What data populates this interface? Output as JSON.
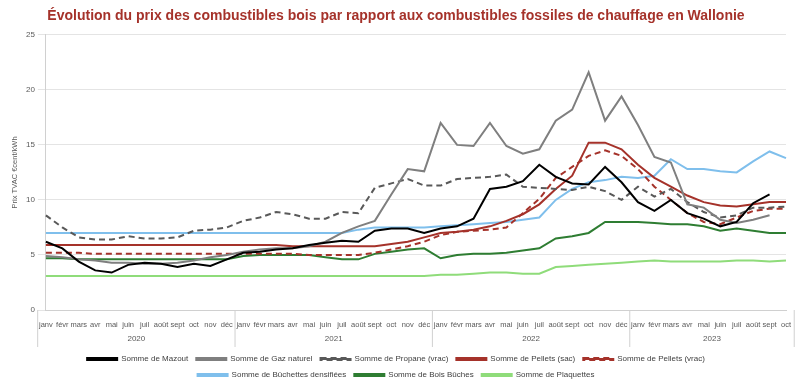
{
  "chart_data": {
    "type": "line",
    "title": "Évolution du prix des combustibles bois par rapport aux combustibles fossiles de chauffage en Wallonie",
    "y_label": "Prix TVAC €cent/kWh",
    "categories": [
      "janv",
      "févr",
      "mars",
      "avr",
      "mai",
      "juin",
      "juil",
      "août",
      "sept",
      "oct",
      "nov",
      "déc",
      "janv",
      "févr",
      "mars",
      "avr",
      "mai",
      "juin",
      "juil",
      "août",
      "sept",
      "oct",
      "nov",
      "déc",
      "janv",
      "févr",
      "mars",
      "avr",
      "mai",
      "juin",
      "juil",
      "août",
      "sept",
      "oct",
      "nov",
      "déc",
      "janv",
      "févr",
      "mars",
      "avr",
      "mai",
      "juin",
      "juil",
      "août",
      "sept",
      "oct"
    ],
    "years": [
      "2020",
      "2020",
      "2020",
      "2020",
      "2020",
      "2020",
      "2020",
      "2020",
      "2020",
      "2020",
      "2020",
      "2020",
      "2021",
      "2021",
      "2021",
      "2021",
      "2021",
      "2021",
      "2021",
      "2021",
      "2021",
      "2021",
      "2021",
      "2021",
      "2022",
      "2022",
      "2022",
      "2022",
      "2022",
      "2022",
      "2022",
      "2022",
      "2022",
      "2022",
      "2022",
      "2022",
      "2023",
      "2023",
      "2023",
      "2023",
      "2023",
      "2023",
      "2023",
      "2023",
      "2023",
      "2023"
    ],
    "series": [
      {
        "name": "Somme de Mazout",
        "color": "#000000",
        "line_style": "solid",
        "values": [
          6.2,
          5.6,
          4.4,
          3.6,
          3.4,
          4.1,
          4.3,
          4.2,
          3.9,
          4.2,
          4.0,
          4.6,
          5.2,
          5.3,
          5.5,
          5.6,
          5.9,
          6.1,
          6.3,
          6.2,
          7.2,
          7.4,
          7.4,
          7.0,
          7.4,
          7.6,
          8.3,
          11.0,
          11.2,
          11.7,
          13.2,
          12.1,
          11.5,
          11.4,
          13.0,
          11.6,
          9.8,
          9.0,
          10.0,
          8.8,
          8.3,
          7.6,
          8.0,
          9.7,
          10.5,
          null
        ]
      },
      {
        "name": "Somme de Gaz naturel",
        "color": "#7f7f7f",
        "line_style": "solid",
        "values": [
          4.9,
          4.8,
          4.6,
          4.5,
          4.3,
          4.3,
          4.2,
          4.2,
          4.3,
          4.5,
          4.8,
          5.0,
          5.3,
          5.5,
          5.6,
          5.6,
          5.8,
          6.2,
          7.0,
          7.6,
          8.1,
          10.5,
          12.8,
          12.6,
          17.0,
          15.0,
          14.9,
          17.0,
          14.9,
          14.2,
          14.6,
          17.2,
          18.2,
          21.6,
          17.2,
          19.4,
          16.8,
          13.9,
          13.4,
          9.6,
          9.3,
          8.2,
          7.9,
          8.2,
          8.6,
          null
        ]
      },
      {
        "name": "Somme de Propane (vrac)",
        "color": "#595959",
        "line_style": "dashed",
        "values": [
          8.6,
          7.5,
          6.6,
          6.4,
          6.4,
          6.7,
          6.5,
          6.5,
          6.6,
          7.2,
          7.3,
          7.5,
          8.1,
          8.4,
          8.9,
          8.7,
          8.3,
          8.3,
          8.9,
          8.8,
          11.1,
          11.5,
          11.9,
          11.3,
          11.3,
          11.9,
          12.0,
          12.1,
          12.3,
          11.2,
          11.1,
          11.0,
          10.9,
          11.2,
          10.8,
          10.0,
          11.2,
          10.3,
          11.0,
          9.8,
          8.9,
          8.4,
          8.6,
          9.3,
          9.3,
          9.4
        ]
      },
      {
        "name": "Somme de Pellets (sac)",
        "color": "#a5322a",
        "line_style": "solid",
        "values": [
          5.9,
          5.9,
          5.9,
          5.9,
          5.9,
          5.9,
          5.9,
          5.9,
          5.9,
          5.9,
          5.9,
          5.9,
          5.9,
          5.9,
          5.9,
          5.8,
          5.8,
          5.8,
          5.8,
          5.8,
          5.8,
          6.0,
          6.2,
          6.6,
          7.0,
          7.1,
          7.3,
          7.6,
          8.1,
          8.7,
          9.6,
          11.0,
          12.2,
          15.2,
          15.2,
          14.6,
          13.2,
          12.0,
          11.2,
          10.4,
          9.8,
          9.5,
          9.4,
          9.6,
          9.8,
          9.8
        ]
      },
      {
        "name": "Somme de Pellets (vrac)",
        "color": "#a5322a",
        "line_style": "dashed",
        "values": [
          5.2,
          5.2,
          5.2,
          5.1,
          5.1,
          5.1,
          5.1,
          5.1,
          5.1,
          5.1,
          5.1,
          5.1,
          5.1,
          5.1,
          5.1,
          5.1,
          5.0,
          5.0,
          5.0,
          5.0,
          5.2,
          5.5,
          5.8,
          6.2,
          6.8,
          7.1,
          7.2,
          7.3,
          7.5,
          8.8,
          10.1,
          12.0,
          13.0,
          14.0,
          14.5,
          14.0,
          12.8,
          11.2,
          10.0,
          8.8,
          8.0,
          7.8,
          8.4,
          9.0,
          9.2,
          9.2
        ]
      },
      {
        "name": "Somme de Bûchettes densifiées",
        "color": "#7fbfec",
        "line_style": "solid",
        "values": [
          7.0,
          7.0,
          7.0,
          7.0,
          7.0,
          7.0,
          7.0,
          7.0,
          7.0,
          7.0,
          7.0,
          7.0,
          7.0,
          7.0,
          7.0,
          7.0,
          7.0,
          7.0,
          7.0,
          7.3,
          7.5,
          7.5,
          7.5,
          7.5,
          7.6,
          7.7,
          7.8,
          7.9,
          8.0,
          8.2,
          8.4,
          10.0,
          11.0,
          11.6,
          11.8,
          12.1,
          12.0,
          12.2,
          13.7,
          12.8,
          12.8,
          12.6,
          12.5,
          13.5,
          14.4,
          13.8
        ]
      },
      {
        "name": "Somme de Bois Bûches",
        "color": "#2e7d32",
        "line_style": "solid",
        "values": [
          4.7,
          4.7,
          4.6,
          4.6,
          4.6,
          4.6,
          4.6,
          4.6,
          4.6,
          4.6,
          4.6,
          4.6,
          4.9,
          5.0,
          5.0,
          5.0,
          5.0,
          4.8,
          4.6,
          4.6,
          5.1,
          5.3,
          5.5,
          5.6,
          4.7,
          5.0,
          5.1,
          5.1,
          5.2,
          5.4,
          5.6,
          6.5,
          6.7,
          7.0,
          8.0,
          8.0,
          8.0,
          7.9,
          7.8,
          7.8,
          7.6,
          7.2,
          7.4,
          7.2,
          7.0,
          7.0
        ]
      },
      {
        "name": "Somme de Plaquettes",
        "color": "#8fdc7a",
        "line_style": "solid",
        "values": [
          3.1,
          3.1,
          3.1,
          3.1,
          3.1,
          3.1,
          3.1,
          3.1,
          3.1,
          3.1,
          3.1,
          3.1,
          3.1,
          3.1,
          3.1,
          3.1,
          3.1,
          3.1,
          3.1,
          3.1,
          3.1,
          3.1,
          3.1,
          3.1,
          3.2,
          3.2,
          3.3,
          3.4,
          3.4,
          3.3,
          3.3,
          3.9,
          4.0,
          4.1,
          4.2,
          4.3,
          4.4,
          4.5,
          4.4,
          4.4,
          4.4,
          4.4,
          4.5,
          4.5,
          4.4,
          4.5
        ]
      }
    ],
    "ylim": [
      0,
      25
    ],
    "yticks": [
      0,
      5,
      10,
      15,
      20,
      25
    ],
    "grid": true,
    "legend": "bottom"
  }
}
